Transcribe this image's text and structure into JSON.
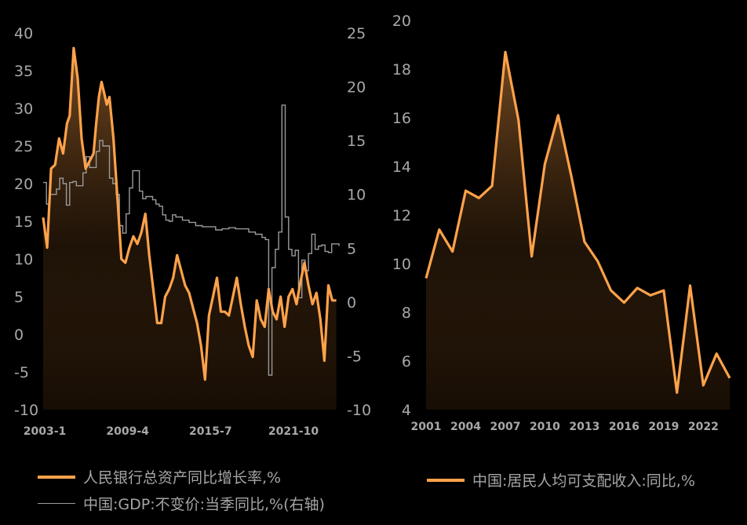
{
  "colors": {
    "orange": "#ffa24a",
    "gray": "#9a9a9a",
    "text": "#a8a8a8",
    "background": "#000000"
  },
  "chart_data": [
    {
      "type": "line",
      "title": "",
      "xlabel": "",
      "ylabel": "",
      "x_tick_labels": [
        "2003-1",
        "2009-4",
        "2015-7",
        "2021-10"
      ],
      "x_tick_times": [
        2003.0,
        2009.25,
        2015.5,
        2021.75
      ],
      "x_range": [
        2003.0,
        2025.3
      ],
      "ylim_left": [
        -10,
        40
      ],
      "yticks_left": [
        "40",
        "35",
        "30",
        "25",
        "20",
        "15",
        "10",
        "5",
        "0",
        "-5",
        "-10"
      ],
      "ylim_right": [
        -10,
        25
      ],
      "yticks_right": [
        "25",
        "20",
        "15",
        "10",
        "5",
        "0",
        "-5",
        "-10"
      ],
      "series": [
        {
          "name": "人民银行总资产同比增长率,%",
          "axis": "left",
          "color": "#ffa24a",
          "x": [
            2003.0,
            2003.3,
            2003.6,
            2003.9,
            2004.2,
            2004.5,
            2004.8,
            2005.0,
            2005.3,
            2005.6,
            2005.9,
            2006.2,
            2006.5,
            2006.8,
            2007.0,
            2007.2,
            2007.4,
            2007.6,
            2007.8,
            2008.0,
            2008.3,
            2008.6,
            2008.9,
            2009.2,
            2009.5,
            2009.8,
            2010.1,
            2010.4,
            2010.7,
            2011.0,
            2011.3,
            2011.6,
            2011.9,
            2012.2,
            2012.5,
            2012.8,
            2013.1,
            2013.4,
            2013.7,
            2014.0,
            2014.3,
            2014.6,
            2014.9,
            2015.2,
            2015.5,
            2015.8,
            2016.1,
            2016.4,
            2016.7,
            2017.0,
            2017.3,
            2017.6,
            2017.9,
            2018.2,
            2018.5,
            2018.8,
            2019.1,
            2019.4,
            2019.7,
            2020.0,
            2020.3,
            2020.6,
            2020.9,
            2021.2,
            2021.5,
            2021.8,
            2022.1,
            2022.4,
            2022.7,
            2023.0,
            2023.3,
            2023.6,
            2023.9,
            2024.2,
            2024.5,
            2024.8,
            2025.1
          ],
          "values": [
            15.5,
            11.5,
            22.0,
            22.5,
            26.0,
            24.0,
            28.0,
            29.0,
            38.0,
            34.0,
            26.0,
            22.0,
            23.0,
            24.0,
            28.0,
            31.5,
            33.5,
            32.0,
            30.5,
            31.5,
            26.0,
            18.0,
            10.0,
            9.5,
            11.5,
            13.0,
            12.0,
            13.5,
            16.0,
            10.5,
            6.0,
            1.5,
            1.5,
            5.0,
            6.0,
            7.5,
            10.5,
            8.5,
            6.5,
            5.5,
            3.5,
            1.5,
            -1.5,
            -6.0,
            2.5,
            5.0,
            7.5,
            3.0,
            3.0,
            2.5,
            5.0,
            7.5,
            4.0,
            1.0,
            -1.5,
            -3.0,
            4.5,
            2.0,
            1.0,
            6.0,
            3.0,
            2.0,
            5.0,
            1.0,
            5.0,
            6.0,
            4.0,
            7.0,
            9.5,
            6.5,
            4.0,
            5.5,
            2.0,
            -3.5,
            6.5,
            4.5,
            4.5
          ]
        },
        {
          "name": "中国:GDP:不变价:当季同比,%(右轴)",
          "axis": "right",
          "color": "#9a9a9a",
          "x": [
            2003.0,
            2003.25,
            2003.5,
            2003.75,
            2004.0,
            2004.25,
            2004.5,
            2004.75,
            2005.0,
            2005.25,
            2005.5,
            2005.75,
            2006.0,
            2006.25,
            2006.5,
            2006.75,
            2007.0,
            2007.25,
            2007.5,
            2007.75,
            2008.0,
            2008.25,
            2008.5,
            2008.75,
            2009.0,
            2009.25,
            2009.5,
            2009.75,
            2010.0,
            2010.25,
            2010.5,
            2010.75,
            2011.0,
            2011.25,
            2011.5,
            2011.75,
            2012.0,
            2012.25,
            2012.5,
            2012.75,
            2013.0,
            2013.5,
            2014.0,
            2014.5,
            2015.0,
            2015.5,
            2016.0,
            2016.5,
            2017.0,
            2017.5,
            2018.0,
            2018.5,
            2019.0,
            2019.5,
            2019.75,
            2020.0,
            2020.25,
            2020.5,
            2020.75,
            2021.0,
            2021.25,
            2021.5,
            2021.75,
            2022.0,
            2022.25,
            2022.5,
            2022.75,
            2023.0,
            2023.25,
            2023.5,
            2023.75,
            2024.0,
            2024.25,
            2024.5,
            2024.75,
            2025.0,
            2025.3
          ],
          "values": [
            11.1,
            9.1,
            10.0,
            10.0,
            10.5,
            11.5,
            11.0,
            9.0,
            11.1,
            11.2,
            10.8,
            10.8,
            12.0,
            13.5,
            12.5,
            12.5,
            14.0,
            15.0,
            14.5,
            14.5,
            11.5,
            11.0,
            10.0,
            7.1,
            6.4,
            8.2,
            10.6,
            12.2,
            12.2,
            10.3,
            9.6,
            9.8,
            9.8,
            9.5,
            9.1,
            8.9,
            8.1,
            7.6,
            7.5,
            8.1,
            7.9,
            7.6,
            7.4,
            7.1,
            7.0,
            7.0,
            6.7,
            6.8,
            6.9,
            6.8,
            6.8,
            6.5,
            6.3,
            6.0,
            5.8,
            -6.8,
            3.2,
            4.9,
            6.5,
            18.3,
            7.9,
            4.9,
            4.3,
            4.8,
            0.4,
            3.9,
            2.9,
            4.5,
            6.3,
            4.9,
            5.2,
            5.3,
            4.7,
            4.6,
            5.4,
            5.4,
            5.2
          ]
        }
      ]
    },
    {
      "type": "line",
      "title": "",
      "xlabel": "",
      "ylabel": "",
      "x_tick_labels": [
        "2001",
        "2004",
        "2007",
        "2010",
        "2013",
        "2016",
        "2019",
        "2022"
      ],
      "x_range": [
        2001,
        2024
      ],
      "ylim": [
        4,
        20
      ],
      "yticks": [
        "20",
        "18",
        "16",
        "14",
        "12",
        "10",
        "8",
        "6",
        "4"
      ],
      "series": [
        {
          "name": "中国:居民人均可支配收入:同比,%",
          "color": "#ffa24a",
          "x": [
            2001,
            2002,
            2003,
            2004,
            2005,
            2006,
            2007,
            2008,
            2009,
            2010,
            2011,
            2012,
            2013,
            2014,
            2015,
            2016,
            2017,
            2018,
            2019,
            2020,
            2021,
            2022,
            2023,
            2024
          ],
          "values": [
            9.4,
            11.4,
            10.5,
            13.0,
            12.7,
            13.2,
            18.7,
            15.9,
            10.3,
            14.1,
            16.1,
            13.6,
            10.9,
            10.1,
            8.9,
            8.4,
            9.0,
            8.7,
            8.9,
            4.7,
            9.1,
            5.0,
            6.3,
            5.3
          ]
        }
      ]
    }
  ],
  "legend": {
    "left_1": "人民银行总资产同比增长率,%",
    "left_2": "中国:GDP:不变价:当季同比,%(右轴)",
    "right_1": "中国:居民人均可支配收入:同比,%"
  }
}
